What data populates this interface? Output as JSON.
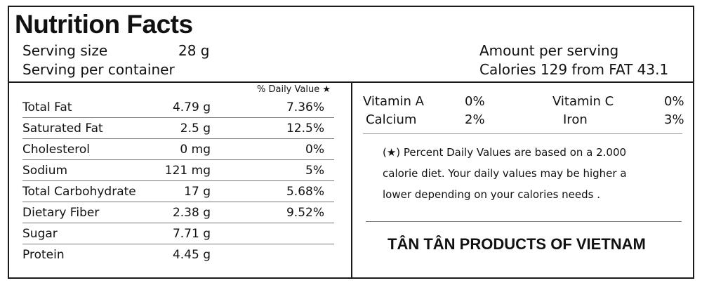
{
  "title": "Nutrition Facts",
  "serving": {
    "size_label": "Serving size",
    "size_value": "28 g",
    "per_container_label": "Serving per container",
    "amount_label": "Amount per serving",
    "calories_line": "Calories 129 from FAT 43.1"
  },
  "daily_value_header": "% Daily Value ★",
  "nutrients": [
    {
      "name": "Total Fat",
      "amount": "4.79 g",
      "percent": "7.36%"
    },
    {
      "name": "Saturated Fat",
      "amount": "2.5 g",
      "percent": "12.5%"
    },
    {
      "name": "Cholesterol",
      "amount": "0 mg",
      "percent": "0%"
    },
    {
      "name": "Sodium",
      "amount": "121 mg",
      "percent": "5%"
    },
    {
      "name": "Total Carbohydrate",
      "amount": "17 g",
      "percent": "5.68%"
    },
    {
      "name": "Dietary Fiber",
      "amount": "2.38 g",
      "percent": "9.52%"
    },
    {
      "name": "Sugar",
      "amount": "7.71 g",
      "percent": ""
    },
    {
      "name": "Protein",
      "amount": "4.45 g",
      "percent": ""
    }
  ],
  "vitamins": {
    "vitamin_a_label": "Vitamin A",
    "vitamin_a_value": "0%",
    "vitamin_c_label": "Vitamin C",
    "vitamin_c_value": "0%",
    "calcium_label": "Calcium",
    "calcium_value": "2%",
    "iron_label": "Iron",
    "iron_value": "3%"
  },
  "footnote": [
    "(★) Percent Daily Values are based on a 2.000",
    "calorie diet. Your daily values may be higher a",
    "lower depending on your calories needs ."
  ],
  "brand": "TÂN TÂN PRODUCTS OF VIETNAM"
}
